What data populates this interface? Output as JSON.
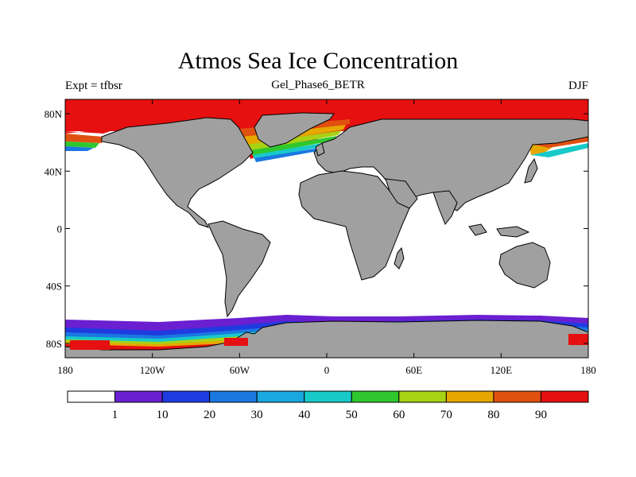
{
  "chart_data": {
    "type": "heatmap",
    "title": "Atmos Sea Ice Concentration",
    "subtitle": "Gel_Phase6_BETR",
    "left_string": "Expt = tfbsr",
    "right_string": "DJF",
    "x_ticks": [
      {
        "value": -180,
        "label": "180"
      },
      {
        "value": -120,
        "label": "120W"
      },
      {
        "value": -60,
        "label": "60W"
      },
      {
        "value": 0,
        "label": "0"
      },
      {
        "value": 60,
        "label": "60E"
      },
      {
        "value": 120,
        "label": "120E"
      },
      {
        "value": 180,
        "label": "180"
      }
    ],
    "y_ticks": [
      {
        "value": 80,
        "label": "80N"
      },
      {
        "value": 40,
        "label": "40N"
      },
      {
        "value": 0,
        "label": "0"
      },
      {
        "value": -40,
        "label": "40S"
      },
      {
        "value": -80,
        "label": "80S"
      }
    ],
    "xlim": [
      -180,
      180
    ],
    "ylim": [
      -90,
      90
    ],
    "colorbar": {
      "levels": [
        "1",
        "10",
        "20",
        "30",
        "40",
        "50",
        "60",
        "70",
        "80",
        "90"
      ],
      "colors": [
        "#ffffff",
        "#6a1fd1",
        "#1f3be0",
        "#1a78e0",
        "#19a8e0",
        "#18c9c9",
        "#2ec82e",
        "#a8d214",
        "#e6a800",
        "#e05010",
        "#e61010"
      ]
    },
    "land_color": "#a0a0a0",
    "ocean_color": "#ffffff"
  }
}
